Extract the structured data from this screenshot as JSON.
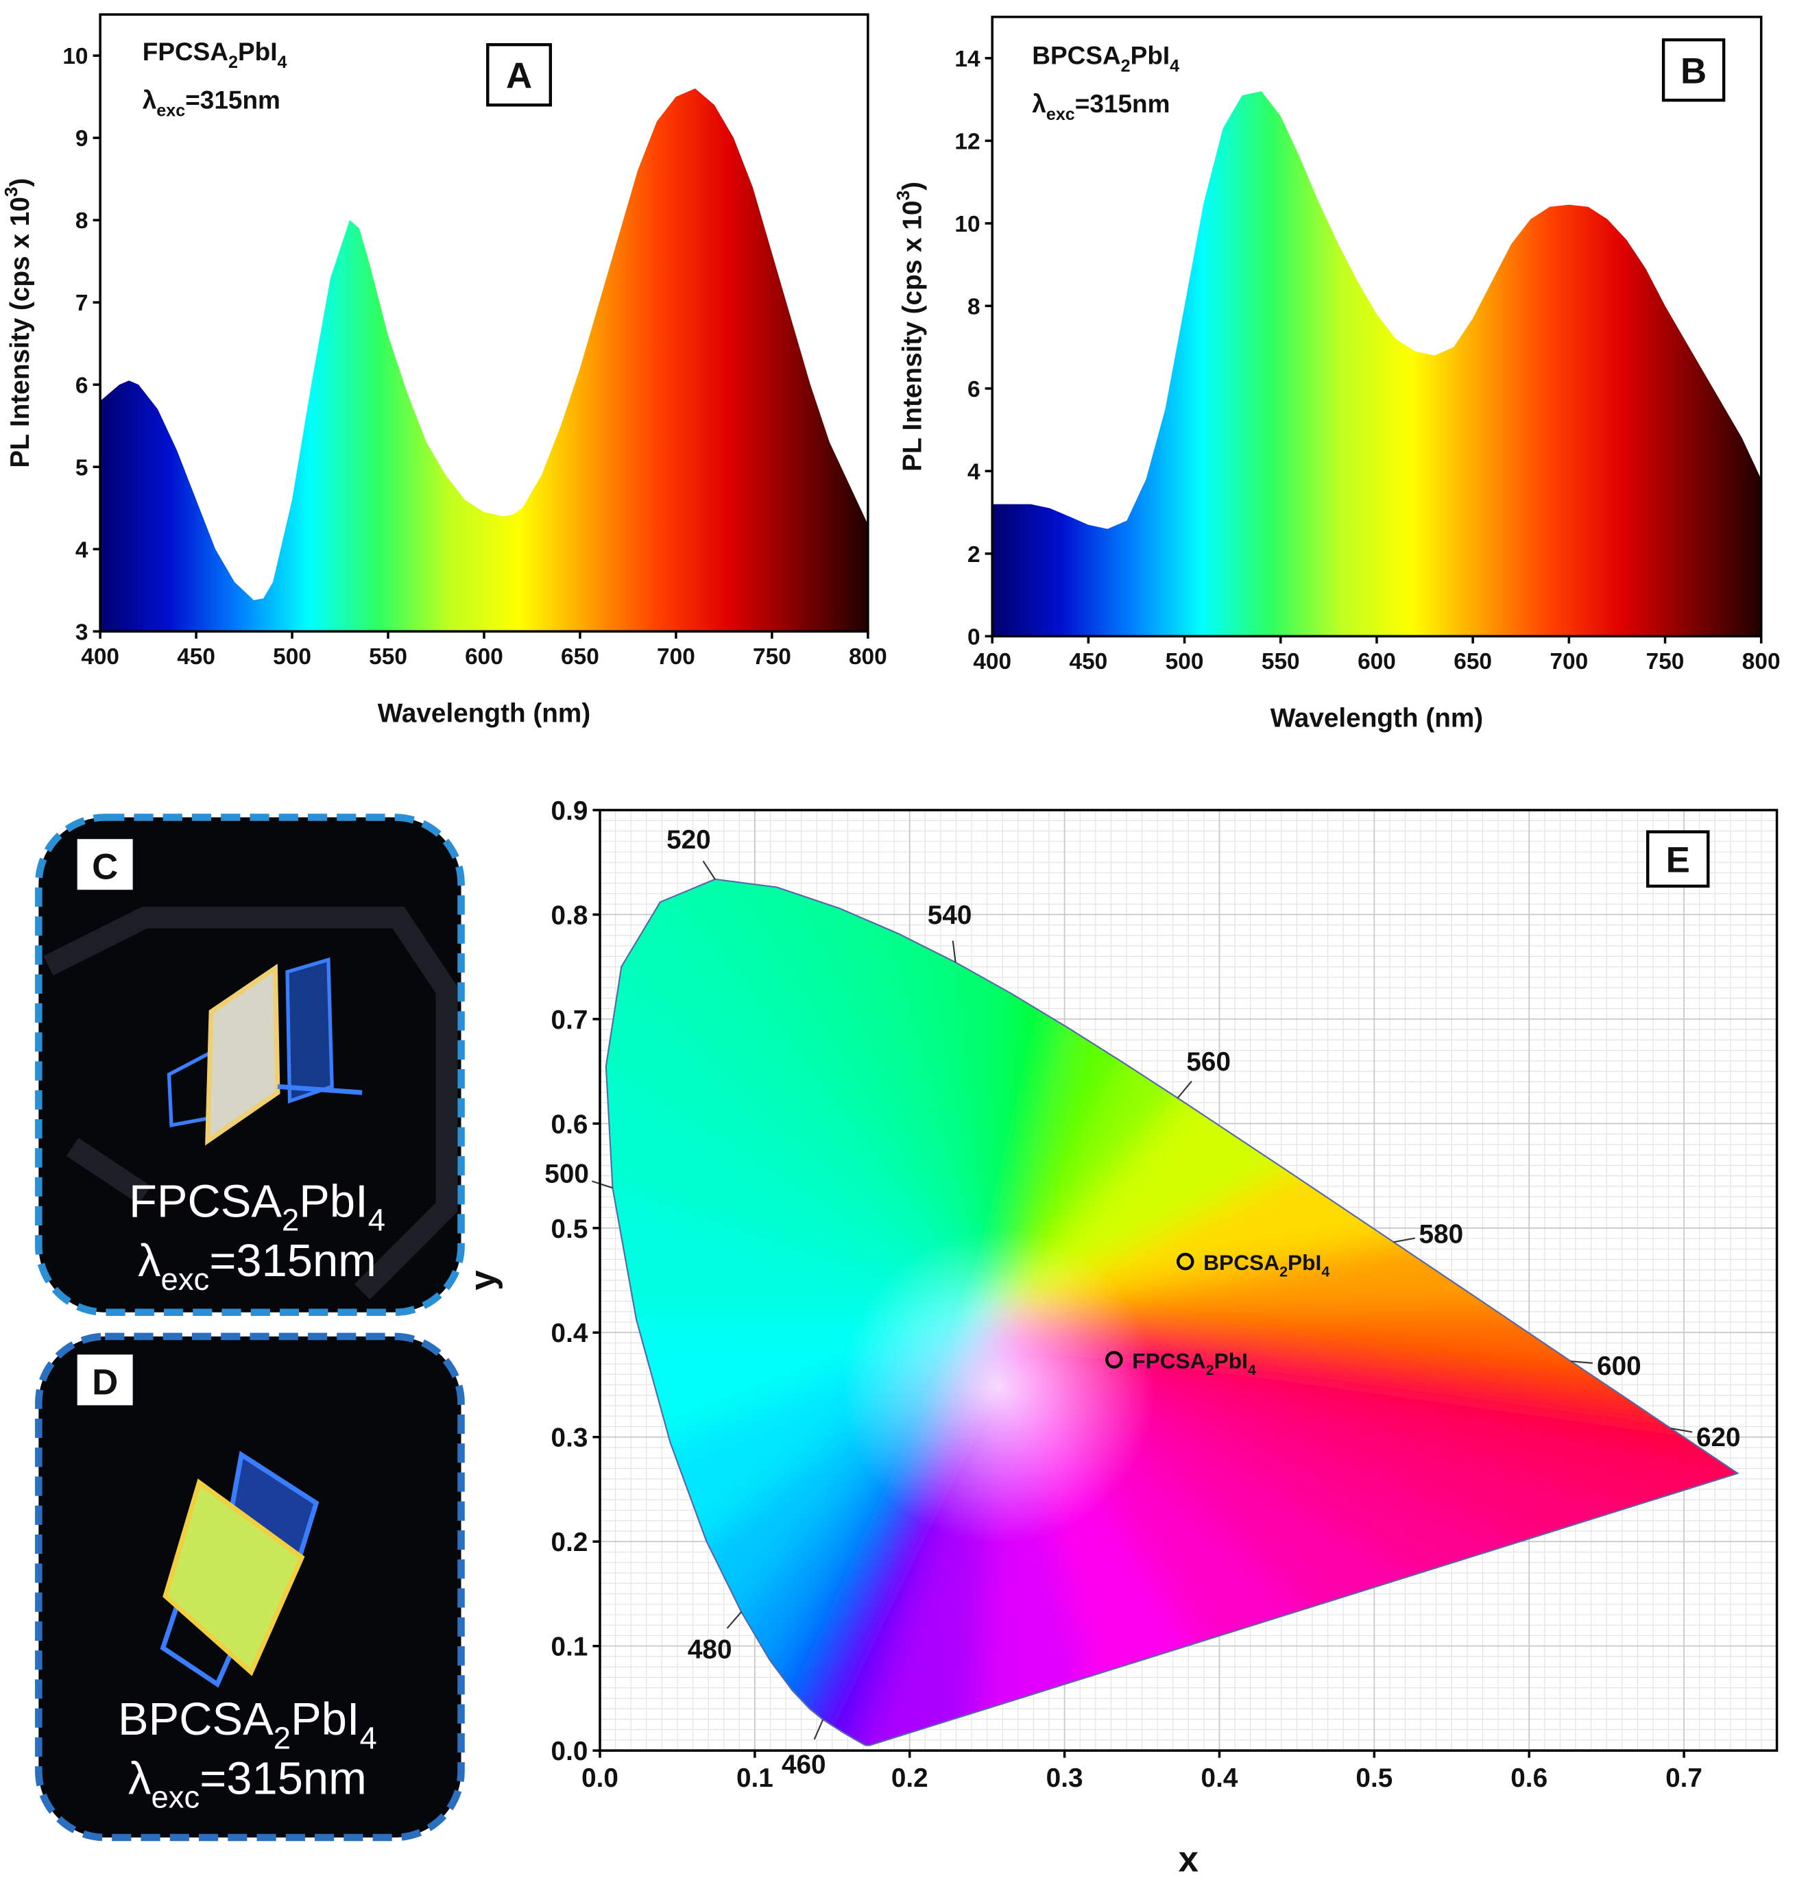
{
  "chart_data": [
    {
      "type": "area",
      "panel": "A",
      "sample": [
        "FPCSA",
        "2",
        "PbI",
        "4"
      ],
      "excitation": [
        "λ",
        "exc",
        "=315nm"
      ],
      "xlabel": "Wavelength (nm)",
      "ylabel": [
        "PL Intensity (cps x 10",
        "3",
        ")"
      ],
      "x": [
        400,
        410,
        415,
        420,
        430,
        440,
        450,
        460,
        470,
        480,
        485,
        490,
        500,
        510,
        520,
        530,
        535,
        540,
        550,
        560,
        570,
        580,
        590,
        600,
        610,
        615,
        620,
        630,
        640,
        650,
        660,
        670,
        680,
        690,
        700,
        710,
        720,
        730,
        740,
        750,
        760,
        770,
        780,
        790,
        800
      ],
      "values": [
        5.8,
        6.0,
        6.05,
        6.0,
        5.7,
        5.2,
        4.6,
        4.0,
        3.6,
        3.38,
        3.4,
        3.6,
        4.6,
        6.0,
        7.3,
        8.0,
        7.9,
        7.5,
        6.6,
        5.9,
        5.3,
        4.9,
        4.6,
        4.45,
        4.4,
        4.42,
        4.5,
        4.9,
        5.5,
        6.2,
        7.0,
        7.8,
        8.6,
        9.2,
        9.5,
        9.6,
        9.4,
        9.0,
        8.4,
        7.6,
        6.8,
        6.0,
        5.3,
        4.8,
        4.3
      ],
      "xlim": [
        400,
        800
      ],
      "ylim": [
        3,
        10.5
      ],
      "xticks": [
        400,
        450,
        500,
        550,
        600,
        650,
        700,
        750,
        800
      ],
      "yticks": [
        3,
        4,
        5,
        6,
        7,
        8,
        9,
        10
      ],
      "gradient": [
        "#00006e",
        "#0010d0",
        "#0080ff",
        "#00ffff",
        "#30ff60",
        "#c0ff20",
        "#ffff00",
        "#ffa000",
        "#ff4000",
        "#e00000",
        "#800000",
        "#200000"
      ]
    },
    {
      "type": "area",
      "panel": "B",
      "sample": [
        "BPCSA",
        "2",
        "PbI",
        "4"
      ],
      "excitation": [
        "λ",
        "exc",
        "=315nm"
      ],
      "xlabel": "Wavelength (nm)",
      "ylabel": [
        "PL Intensity (cps x 10",
        "3",
        ")"
      ],
      "x": [
        400,
        410,
        420,
        430,
        440,
        450,
        460,
        470,
        480,
        490,
        500,
        510,
        520,
        530,
        540,
        550,
        560,
        570,
        580,
        590,
        600,
        610,
        620,
        630,
        640,
        650,
        660,
        670,
        680,
        690,
        700,
        710,
        720,
        730,
        740,
        750,
        760,
        770,
        780,
        790,
        800
      ],
      "values": [
        3.2,
        3.2,
        3.2,
        3.1,
        2.9,
        2.7,
        2.6,
        2.8,
        3.8,
        5.5,
        8.0,
        10.5,
        12.3,
        13.1,
        13.2,
        12.6,
        11.6,
        10.5,
        9.5,
        8.6,
        7.8,
        7.2,
        6.9,
        6.8,
        7.0,
        7.7,
        8.6,
        9.5,
        10.1,
        10.4,
        10.45,
        10.4,
        10.1,
        9.6,
        8.9,
        8.0,
        7.2,
        6.4,
        5.6,
        4.8,
        3.8
      ],
      "xlim": [
        400,
        800
      ],
      "ylim": [
        0,
        15
      ],
      "xticks": [
        400,
        450,
        500,
        550,
        600,
        650,
        700,
        750,
        800
      ],
      "yticks": [
        0,
        2,
        4,
        6,
        8,
        10,
        12,
        14
      ],
      "gradient": [
        "#00006e",
        "#0010d0",
        "#0080ff",
        "#00ffff",
        "#30ff60",
        "#c0ff20",
        "#ffff00",
        "#ffa000",
        "#ff4000",
        "#e00000",
        "#800000",
        "#200000"
      ]
    },
    {
      "type": "scatter",
      "panel": "E",
      "xlabel": "x",
      "ylabel": "y",
      "xlim": [
        0,
        0.76
      ],
      "ylim": [
        0,
        0.9
      ],
      "xticks": [
        {
          "value": 0,
          "label": "0.0"
        },
        0.1,
        0.2,
        0.3,
        0.4,
        0.5,
        0.6,
        0.7
      ],
      "yticks": [
        {
          "value": 0,
          "label": "0.0"
        },
        0.1,
        0.2,
        0.3,
        0.4,
        0.5,
        0.6,
        0.7,
        0.8,
        0.9
      ],
      "grid": true,
      "minor_grid": 0.01,
      "locus": {
        "wavelengths": [
          380,
          420,
          440,
          450,
          460,
          465,
          470,
          475,
          480,
          485,
          490,
          495,
          500,
          505,
          510,
          515,
          520,
          525,
          530,
          535,
          540,
          545,
          550,
          555,
          560,
          570,
          580,
          590,
          600,
          610,
          620,
          640,
          700
        ],
        "x": [
          0.1741,
          0.1714,
          0.1644,
          0.1566,
          0.144,
          0.1355,
          0.1241,
          0.1096,
          0.0913,
          0.0687,
          0.0454,
          0.0235,
          0.0082,
          0.0039,
          0.0139,
          0.0389,
          0.0743,
          0.1142,
          0.1547,
          0.1929,
          0.2296,
          0.2658,
          0.3016,
          0.3373,
          0.3731,
          0.4441,
          0.5125,
          0.5752,
          0.627,
          0.6658,
          0.6915,
          0.719,
          0.7347
        ],
        "y": [
          0.005,
          0.0051,
          0.0109,
          0.0177,
          0.0297,
          0.0399,
          0.0578,
          0.0868,
          0.1327,
          0.2007,
          0.295,
          0.4127,
          0.5384,
          0.6548,
          0.7502,
          0.812,
          0.8338,
          0.8262,
          0.8059,
          0.7816,
          0.7543,
          0.7243,
          0.6923,
          0.6589,
          0.6245,
          0.5547,
          0.4866,
          0.4242,
          0.3725,
          0.334,
          0.3083,
          0.2809,
          0.2653
        ]
      },
      "locus_labels": [
        460,
        480,
        500,
        520,
        540,
        560,
        580,
        600,
        620
      ],
      "series": [
        {
          "name": [
            "BPCSA",
            "2",
            "PbI",
            "4"
          ],
          "color": "#000000",
          "x": [
            0.378
          ],
          "values": [
            0.468
          ]
        },
        {
          "name": [
            "FPCSA",
            "2",
            "PbI",
            "4"
          ],
          "color": "#000000",
          "x": [
            0.332
          ],
          "values": [
            0.374
          ]
        }
      ]
    }
  ],
  "photos": [
    {
      "panel": "C",
      "sample": [
        "FPCSA",
        "2",
        "PbI",
        "4"
      ],
      "excitation": [
        "λ",
        "exc",
        "=315nm"
      ]
    },
    {
      "panel": "D",
      "sample": [
        "BPCSA",
        "2",
        "PbI",
        "4"
      ],
      "excitation": [
        "λ",
        "exc",
        "=315nm"
      ]
    }
  ]
}
